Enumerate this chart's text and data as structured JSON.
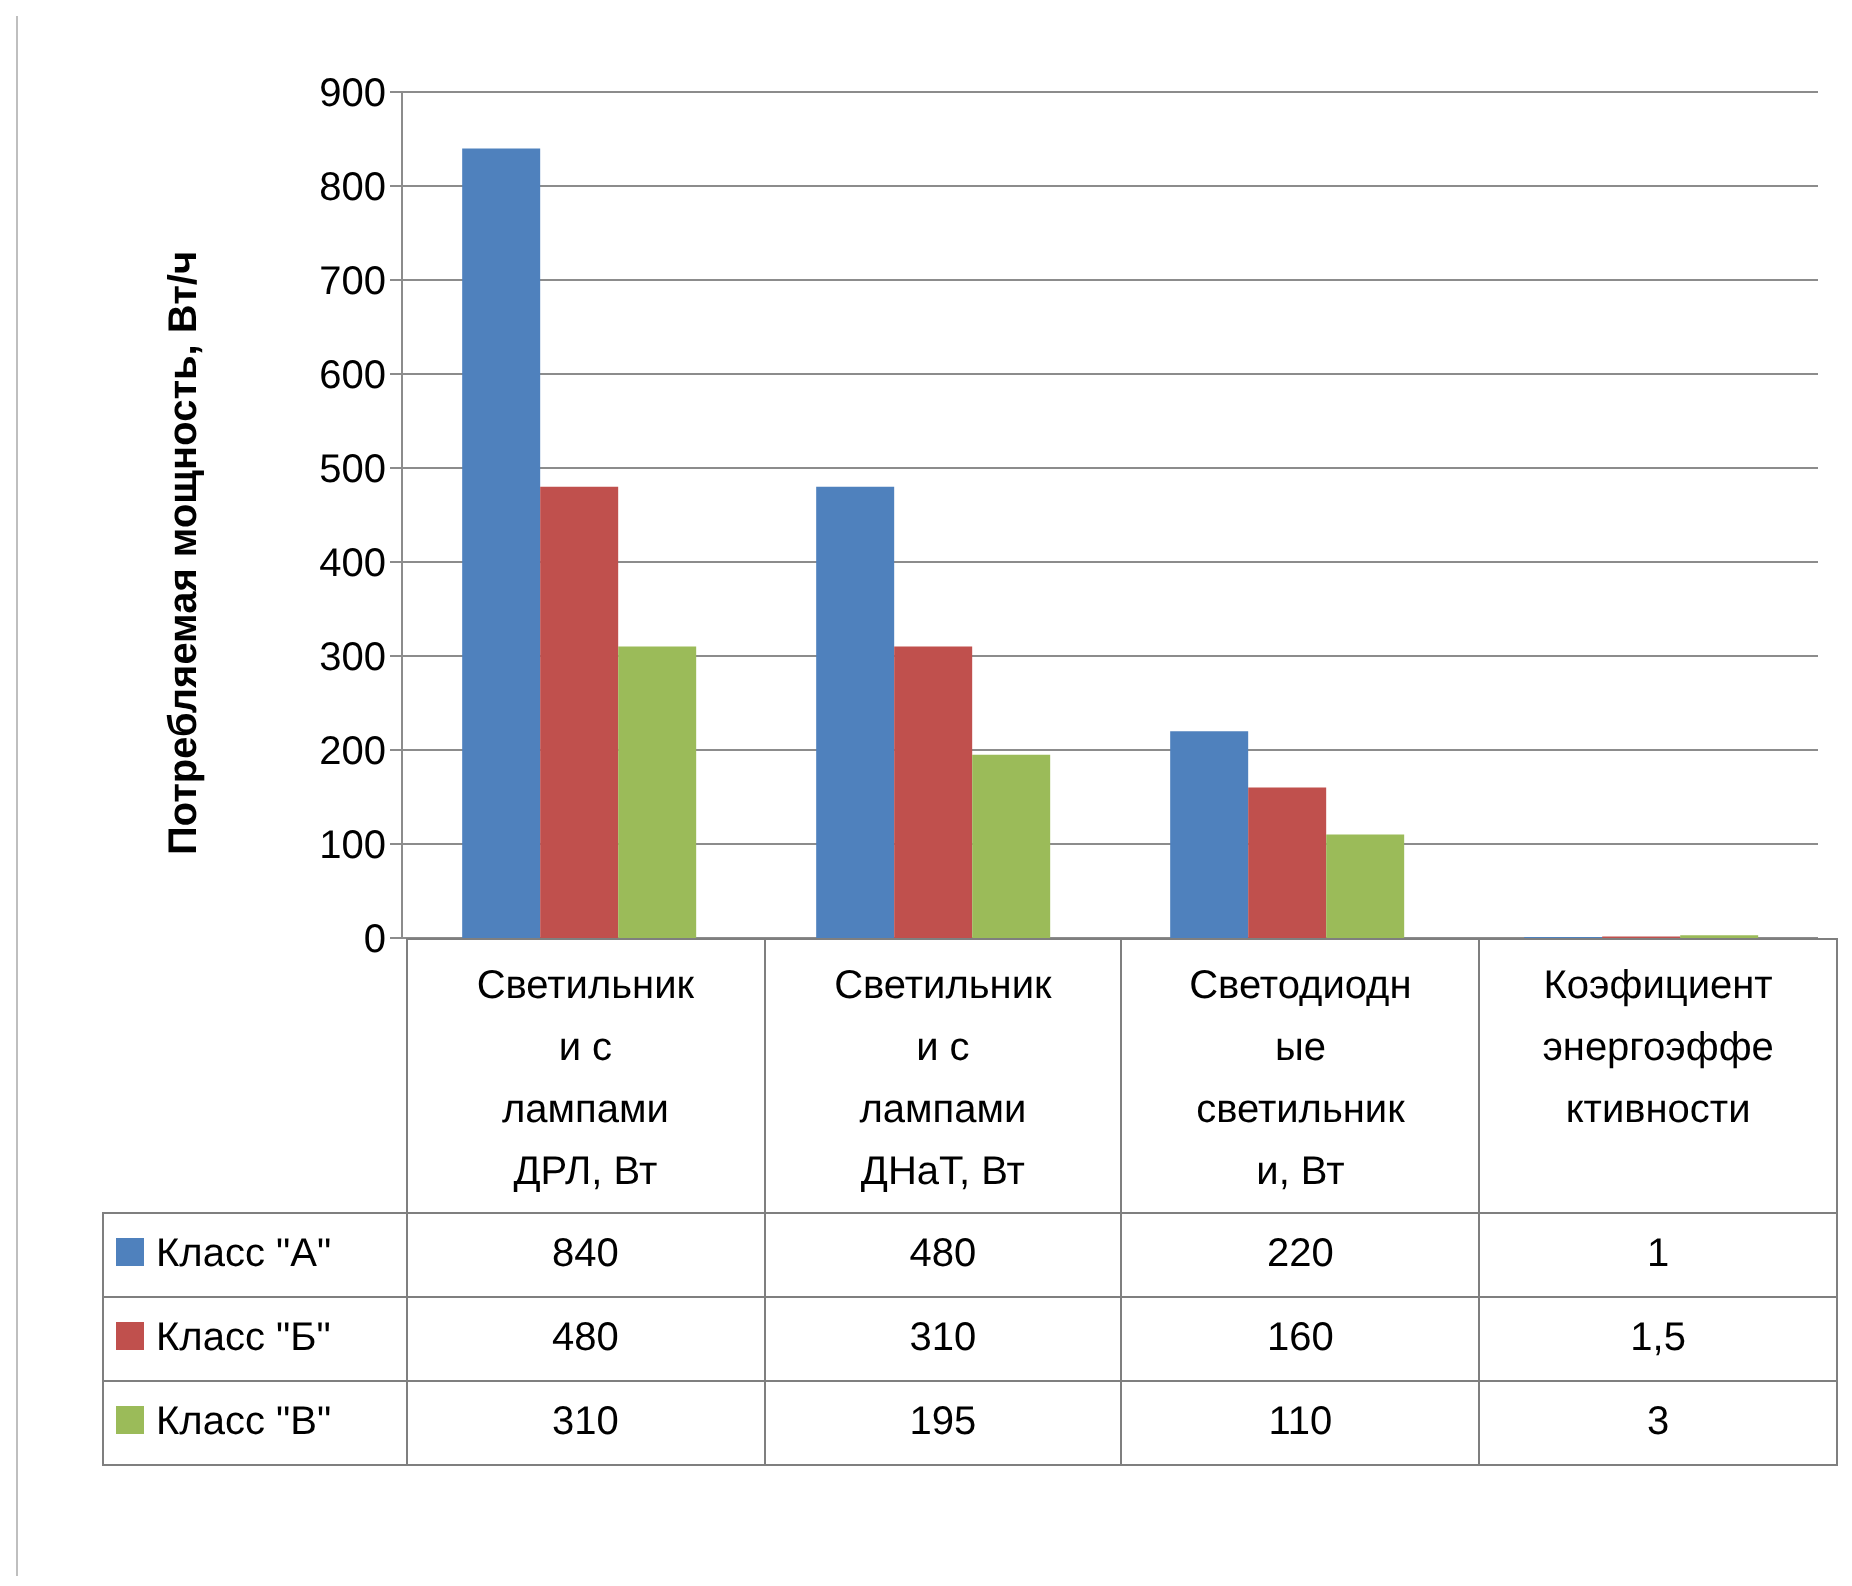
{
  "chart_data": {
    "type": "bar",
    "ylabel": "Потребляемая мощность, Вт/ч",
    "categories": [
      "Светильники с лампами ДРЛ, Вт",
      "Светильники с лампами ДНаТ, Вт",
      "Светодиодные светильники, Вт",
      "Коэфициент энергоэффективности"
    ],
    "series": [
      {
        "name": "Класс \"А\"",
        "color": "#4f81bd",
        "values": [
          840,
          480,
          220,
          1
        ],
        "value_labels": [
          "840",
          "480",
          "220",
          "1"
        ]
      },
      {
        "name": "Класс \"Б\"",
        "color": "#c0504d",
        "values": [
          480,
          310,
          160,
          1.5
        ],
        "value_labels": [
          "480",
          "310",
          "160",
          "1,5"
        ]
      },
      {
        "name": "Класс \"В\"",
        "color": "#9bbb59",
        "values": [
          310,
          195,
          110,
          3
        ],
        "value_labels": [
          "310",
          "195",
          "110",
          "3"
        ]
      }
    ],
    "ylim": [
      0,
      900
    ],
    "yticks": [
      0,
      100,
      200,
      300,
      400,
      500,
      600,
      700,
      800,
      900
    ],
    "grid": "y",
    "legend": "bottom"
  }
}
